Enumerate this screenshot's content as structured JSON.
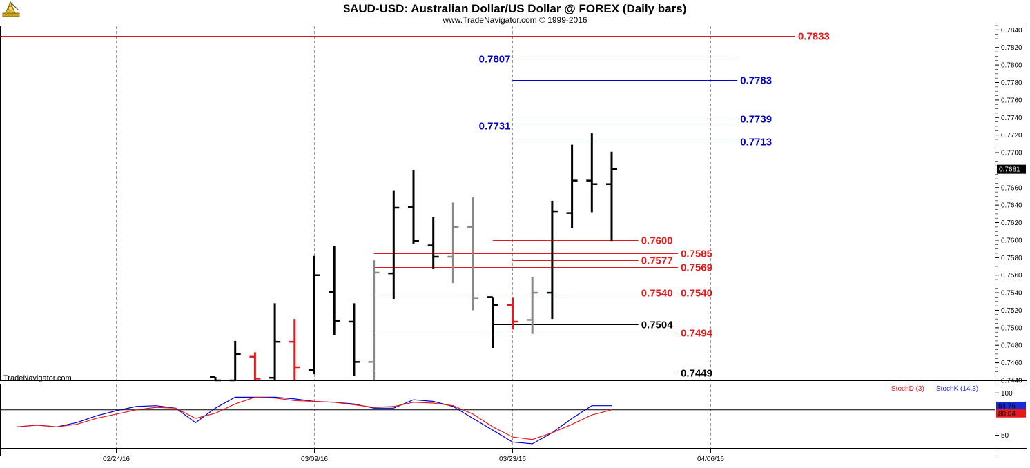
{
  "header": {
    "title": "$AUD-USD:  Australian Dollar/US Dollar @ FOREX  (Daily bars)",
    "subtitle": "www.TradeNavigator.com © 1999-2016"
  },
  "watermark": "TradeNavigator.com",
  "colors": {
    "red": "#e31a1c",
    "blue": "#0000cc",
    "black": "#000000",
    "gray": "#888888",
    "grid": "#999999",
    "stoch_d": "#e31a1c",
    "stoch_k": "#1a2ad9"
  },
  "icons": {
    "logo": "sextant-logo-icon"
  },
  "chart_data": [
    {
      "type": "ohlc",
      "title": "$AUD-USD:  Australian Dollar/US Dollar @ FOREX  (Daily bars)",
      "ylim": [
        0.744,
        0.7845
      ],
      "y_ticks": [
        "0.7840",
        "0.7820",
        "0.7800",
        "0.7780",
        "0.7760",
        "0.7740",
        "0.7720",
        "0.7700",
        "0.7680",
        "0.7660",
        "0.7640",
        "0.7620",
        "0.7600",
        "0.7580",
        "0.7560",
        "0.7540",
        "0.7520",
        "0.7500",
        "0.7480",
        "0.7460",
        "0.7440"
      ],
      "x_ticks": [
        "02/24/16",
        "03/09/16",
        "03/23/16",
        "04/06/16"
      ],
      "last_price": "0.7681",
      "bars": [
        {
          "date": "03/02/16",
          "o": 0.7444,
          "h": 0.7444,
          "l": 0.744,
          "c": 0.744,
          "color": "black"
        },
        {
          "date": "03/03/16",
          "o": 0.744,
          "h": 0.7485,
          "l": 0.744,
          "c": 0.747,
          "color": "black"
        },
        {
          "date": "03/04/16",
          "o": 0.7467,
          "h": 0.7472,
          "l": 0.744,
          "c": 0.7442,
          "color": "red"
        },
        {
          "date": "03/07/16",
          "o": 0.7443,
          "h": 0.7528,
          "l": 0.744,
          "c": 0.7484,
          "color": "black"
        },
        {
          "date": "03/08/16",
          "o": 0.7484,
          "h": 0.751,
          "l": 0.744,
          "c": 0.7455,
          "color": "red"
        },
        {
          "date": "03/09/16",
          "o": 0.7452,
          "h": 0.7582,
          "l": 0.7447,
          "c": 0.756,
          "color": "black"
        },
        {
          "date": "03/10/16",
          "o": 0.7541,
          "h": 0.7593,
          "l": 0.7492,
          "c": 0.7508,
          "color": "black"
        },
        {
          "date": "03/11/16",
          "o": 0.7507,
          "h": 0.7528,
          "l": 0.7445,
          "c": 0.7461,
          "color": "black"
        },
        {
          "date": "03/14/16",
          "o": 0.7461,
          "h": 0.7577,
          "l": 0.744,
          "c": 0.7563,
          "color": "gray"
        },
        {
          "date": "03/15/16",
          "o": 0.7562,
          "h": 0.7657,
          "l": 0.7533,
          "c": 0.7637,
          "color": "black"
        },
        {
          "date": "03/16/16",
          "o": 0.7638,
          "h": 0.768,
          "l": 0.7596,
          "c": 0.7599,
          "color": "black"
        },
        {
          "date": "03/17/16",
          "o": 0.7594,
          "h": 0.7626,
          "l": 0.7567,
          "c": 0.7581,
          "color": "black"
        },
        {
          "date": "03/18/16",
          "o": 0.7581,
          "h": 0.7643,
          "l": 0.7551,
          "c": 0.7615,
          "color": "gray"
        },
        {
          "date": "03/21/16",
          "o": 0.7615,
          "h": 0.7649,
          "l": 0.752,
          "c": 0.7534,
          "color": "gray"
        },
        {
          "date": "03/22/16",
          "o": 0.7535,
          "h": 0.7535,
          "l": 0.7477,
          "c": 0.7526,
          "color": "black"
        },
        {
          "date": "03/23/16",
          "o": 0.7526,
          "h": 0.7535,
          "l": 0.7498,
          "c": 0.7507,
          "color": "red"
        },
        {
          "date": "03/24/16",
          "o": 0.7509,
          "h": 0.7558,
          "l": 0.7493,
          "c": 0.754,
          "color": "gray"
        },
        {
          "date": "03/25/16",
          "o": 0.754,
          "h": 0.7645,
          "l": 0.751,
          "c": 0.7633,
          "color": "black"
        },
        {
          "date": "03/28/16",
          "o": 0.7631,
          "h": 0.7709,
          "l": 0.7614,
          "c": 0.7668,
          "color": "black"
        },
        {
          "date": "03/29/16",
          "o": 0.7668,
          "h": 0.7722,
          "l": 0.7632,
          "c": 0.7664,
          "color": "black"
        },
        {
          "date": "03/30/16",
          "o": 0.7664,
          "h": 0.7701,
          "l": 0.7599,
          "c": 0.7681,
          "color": "black"
        }
      ],
      "levels": [
        {
          "value": 0.7833,
          "label": "0.7833",
          "color": "red",
          "from": "left",
          "to": "end",
          "label_pos": "right"
        },
        {
          "value": 0.7807,
          "label": "0.7807",
          "color": "blue",
          "from": "03/23/16",
          "to": "04/07/16",
          "label_pos": "left"
        },
        {
          "value": 0.7783,
          "label": "0.7783",
          "color": "blue",
          "from": "03/23/16",
          "to": "04/07/16",
          "label_pos": "right"
        },
        {
          "value": 0.7739,
          "label": "0.7739",
          "color": "blue",
          "from": "03/23/16",
          "to": "04/07/16",
          "label_pos": "right"
        },
        {
          "value": 0.7731,
          "label": "0.7731",
          "color": "blue",
          "from": "03/23/16",
          "to": "04/07/16",
          "label_pos": "left"
        },
        {
          "value": 0.7713,
          "label": "0.7713",
          "color": "blue",
          "from": "03/23/16",
          "to": "04/07/16",
          "label_pos": "right"
        },
        {
          "value": 0.76,
          "label": "0.7600",
          "color": "red",
          "from": "03/22/16",
          "to": "03/31/16",
          "label_pos": "right"
        },
        {
          "value": 0.7585,
          "label": "0.7585",
          "color": "red",
          "from": "03/14/16",
          "to": "04/04/16",
          "label_pos": "right"
        },
        {
          "value": 0.7577,
          "label": "0.7577",
          "color": "red",
          "from": "03/23/16",
          "to": "03/31/16",
          "label_pos": "right"
        },
        {
          "value": 0.7569,
          "label": "0.7569",
          "color": "red",
          "from": "03/14/16",
          "to": "04/04/16",
          "label_pos": "right"
        },
        {
          "value": 0.754,
          "label": "0.7540",
          "color": "red",
          "from": "03/14/16",
          "to": "03/31/16",
          "label_pos": "right"
        },
        {
          "value": 0.754,
          "label": "0.7540",
          "color": "red",
          "from": "03/14/16",
          "to": "04/04/16",
          "label_pos": "right"
        },
        {
          "value": 0.7504,
          "label": "0.7504",
          "color": "black",
          "from": "03/22/16",
          "to": "03/31/16",
          "label_pos": "right"
        },
        {
          "value": 0.7494,
          "label": "0.7494",
          "color": "red",
          "from": "03/14/16",
          "to": "04/04/16",
          "label_pos": "right"
        },
        {
          "value": 0.7449,
          "label": "0.7449",
          "color": "black",
          "from": "03/14/16",
          "to": "04/04/16",
          "label_pos": "right"
        }
      ]
    },
    {
      "type": "line",
      "title": "",
      "ylim": [
        35,
        110
      ],
      "y_ticks": [
        "100",
        "50"
      ],
      "legend": [
        "StochD (3)",
        "StochK (14,3)"
      ],
      "reference_line": 80,
      "last_values": {
        "stoch_d": "80.04",
        "stoch_k": "84.76"
      },
      "series": [
        {
          "name": "StochK (14,3)",
          "color": "blue",
          "points": [
            [
              "02/17/16",
              60
            ],
            [
              "02/18/16",
              62
            ],
            [
              "02/19/16",
              60
            ],
            [
              "02/22/16",
              65
            ],
            [
              "02/23/16",
              73
            ],
            [
              "02/24/16",
              79
            ],
            [
              "02/25/16",
              84
            ],
            [
              "02/26/16",
              85
            ],
            [
              "02/29/16",
              82
            ],
            [
              "03/01/16",
              65
            ],
            [
              "03/02/16",
              82
            ],
            [
              "03/03/16",
              95
            ],
            [
              "03/04/16",
              95
            ],
            [
              "03/07/16",
              95
            ],
            [
              "03/08/16",
              93
            ],
            [
              "03/09/16",
              90
            ],
            [
              "03/10/16",
              89
            ],
            [
              "03/11/16",
              87
            ],
            [
              "03/14/16",
              82
            ],
            [
              "03/15/16",
              82
            ],
            [
              "03/16/16",
              92
            ],
            [
              "03/17/16",
              90
            ],
            [
              "03/18/16",
              84
            ],
            [
              "03/21/16",
              70
            ],
            [
              "03/22/16",
              56
            ],
            [
              "03/23/16",
              42
            ],
            [
              "03/24/16",
              40
            ],
            [
              "03/25/16",
              53
            ],
            [
              "03/28/16",
              70
            ],
            [
              "03/29/16",
              85
            ],
            [
              "03/30/16",
              85
            ]
          ]
        },
        {
          "name": "StochD (3)",
          "color": "red",
          "points": [
            [
              "02/17/16",
              60
            ],
            [
              "02/18/16",
              62
            ],
            [
              "02/19/16",
              60
            ],
            [
              "02/22/16",
              63
            ],
            [
              "02/23/16",
              70
            ],
            [
              "02/24/16",
              75
            ],
            [
              "02/25/16",
              80
            ],
            [
              "02/26/16",
              83
            ],
            [
              "02/29/16",
              82
            ],
            [
              "03/01/16",
              70
            ],
            [
              "03/02/16",
              76
            ],
            [
              "03/03/16",
              87
            ],
            [
              "03/04/16",
              95
            ],
            [
              "03/07/16",
              94
            ],
            [
              "03/08/16",
              91
            ],
            [
              "03/09/16",
              90
            ],
            [
              "03/10/16",
              89
            ],
            [
              "03/11/16",
              86
            ],
            [
              "03/14/16",
              83
            ],
            [
              "03/15/16",
              84
            ],
            [
              "03/16/16",
              89
            ],
            [
              "03/17/16",
              88
            ],
            [
              "03/18/16",
              85
            ],
            [
              "03/21/16",
              75
            ],
            [
              "03/22/16",
              60
            ],
            [
              "03/23/16",
              48
            ],
            [
              "03/24/16",
              45
            ],
            [
              "03/25/16",
              53
            ],
            [
              "03/28/16",
              63
            ],
            [
              "03/29/16",
              74
            ],
            [
              "03/30/16",
              80
            ]
          ]
        }
      ]
    }
  ]
}
